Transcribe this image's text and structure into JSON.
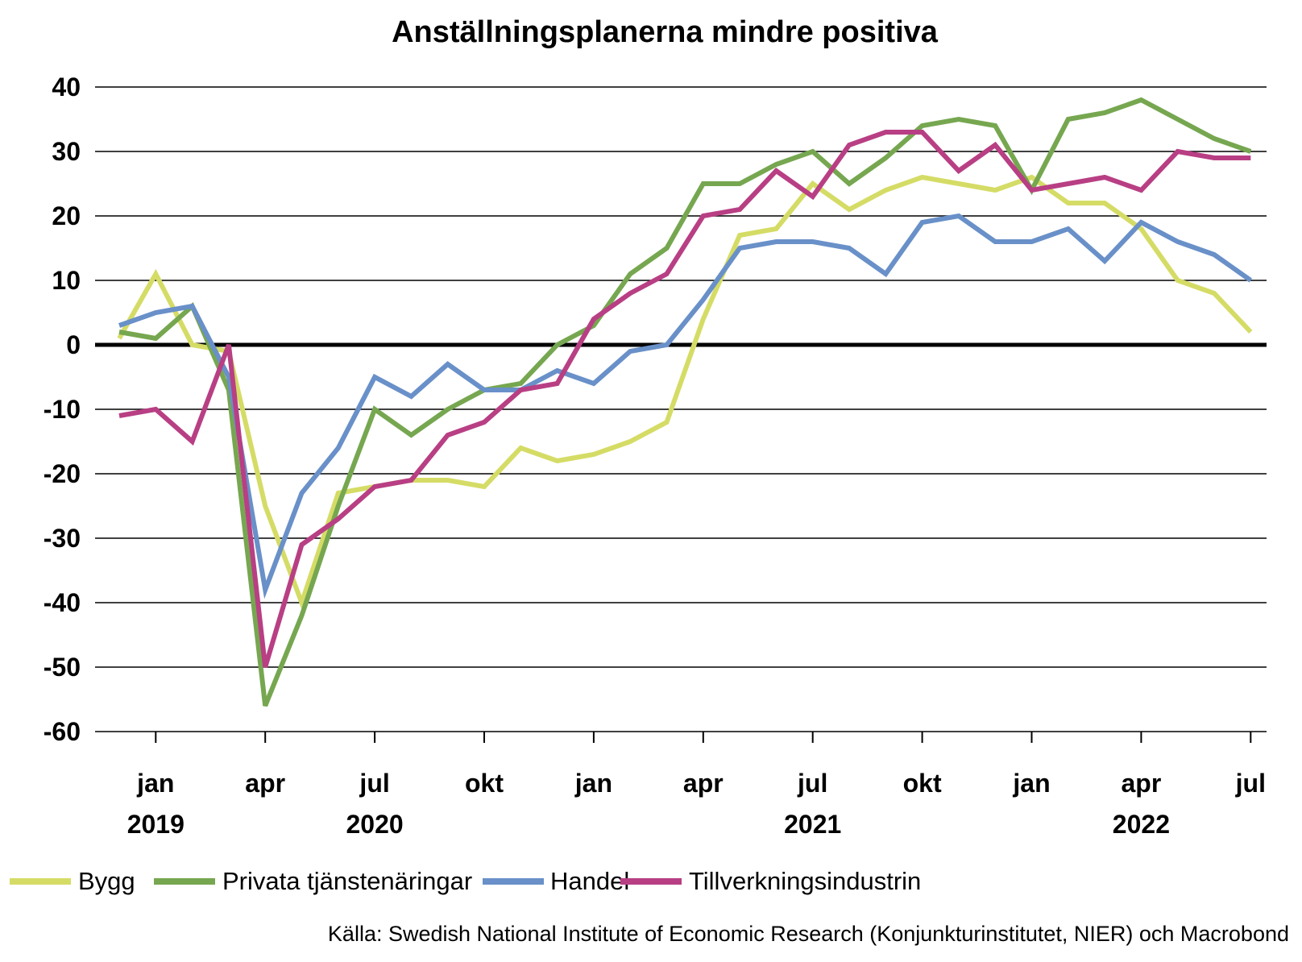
{
  "chart_data": {
    "type": "line",
    "title": "Anställningsplanerna mindre positiva",
    "xlabel": "",
    "ylabel": "",
    "ylim": [
      -60,
      40
    ],
    "yticks": [
      40,
      30,
      20,
      10,
      0,
      -10,
      -20,
      -30,
      -40,
      -50,
      -60
    ],
    "x_start": "2018-12",
    "x_end": "2022-07",
    "x_tick_labels": [
      {
        "month": "2019-01",
        "label": "jan",
        "year": "2019"
      },
      {
        "month": "2019-04",
        "label": "apr",
        "year": ""
      },
      {
        "month": "2019-07",
        "label": "jul",
        "year": "2020"
      },
      {
        "month": "2019-10",
        "label": "okt",
        "year": ""
      },
      {
        "month": "2020-01",
        "label": "jan",
        "year": ""
      },
      {
        "month": "2020-04",
        "label": "apr",
        "year": ""
      },
      {
        "month": "2020-07",
        "label": "jul",
        "year": "2021"
      },
      {
        "month": "2020-10",
        "label": "okt",
        "year": ""
      },
      {
        "month": "2021-01",
        "label": "jan",
        "year": ""
      },
      {
        "month": "2021-04",
        "label": "apr",
        "year": "2022"
      },
      {
        "month": "2021-07",
        "label": "jul",
        "year": ""
      }
    ],
    "legend_position": "bottom",
    "grid": true,
    "series": [
      {
        "name": "Bygg",
        "color": "#d5dc66",
        "values": [
          1,
          11,
          0,
          -1,
          -25,
          -40,
          -23,
          -22,
          -21,
          -21,
          -22,
          -16,
          -18,
          -17,
          -15,
          -12,
          4,
          17,
          18,
          25,
          21,
          24,
          26,
          25,
          24,
          26,
          22,
          22,
          18,
          10,
          8,
          2
        ]
      },
      {
        "name": "Privata tjänstenäringar",
        "color": "#76a750",
        "values": [
          2,
          1,
          6,
          -7,
          -56,
          -42,
          -25,
          -10,
          -14,
          -10,
          -7,
          -6,
          0,
          3,
          11,
          15,
          25,
          25,
          28,
          30,
          25,
          29,
          34,
          35,
          34,
          24,
          35,
          36,
          38,
          35,
          32,
          30
        ]
      },
      {
        "name": "Handel",
        "color": "#6990c8",
        "values": [
          3,
          5,
          6,
          -5,
          -38,
          -23,
          -16,
          -5,
          -8,
          -3,
          -7,
          -7,
          -4,
          -6,
          -1,
          0,
          7,
          15,
          16,
          16,
          15,
          11,
          19,
          20,
          16,
          16,
          18,
          13,
          19,
          16,
          14,
          10
        ]
      },
      {
        "name": "Tillverkningsindustrin",
        "color": "#b83f84",
        "values": [
          -11,
          -10,
          -15,
          0,
          -50,
          -31,
          -27,
          -22,
          -21,
          -14,
          -12,
          -7,
          -6,
          4,
          8,
          11,
          20,
          21,
          27,
          23,
          31,
          33,
          33,
          27,
          31,
          24,
          25,
          26,
          24,
          30,
          29,
          29
        ]
      }
    ]
  },
  "source": "Källa: Swedish National Institute of Economic Research (Konjunkturinstitutet, NIER) och Macrobond"
}
